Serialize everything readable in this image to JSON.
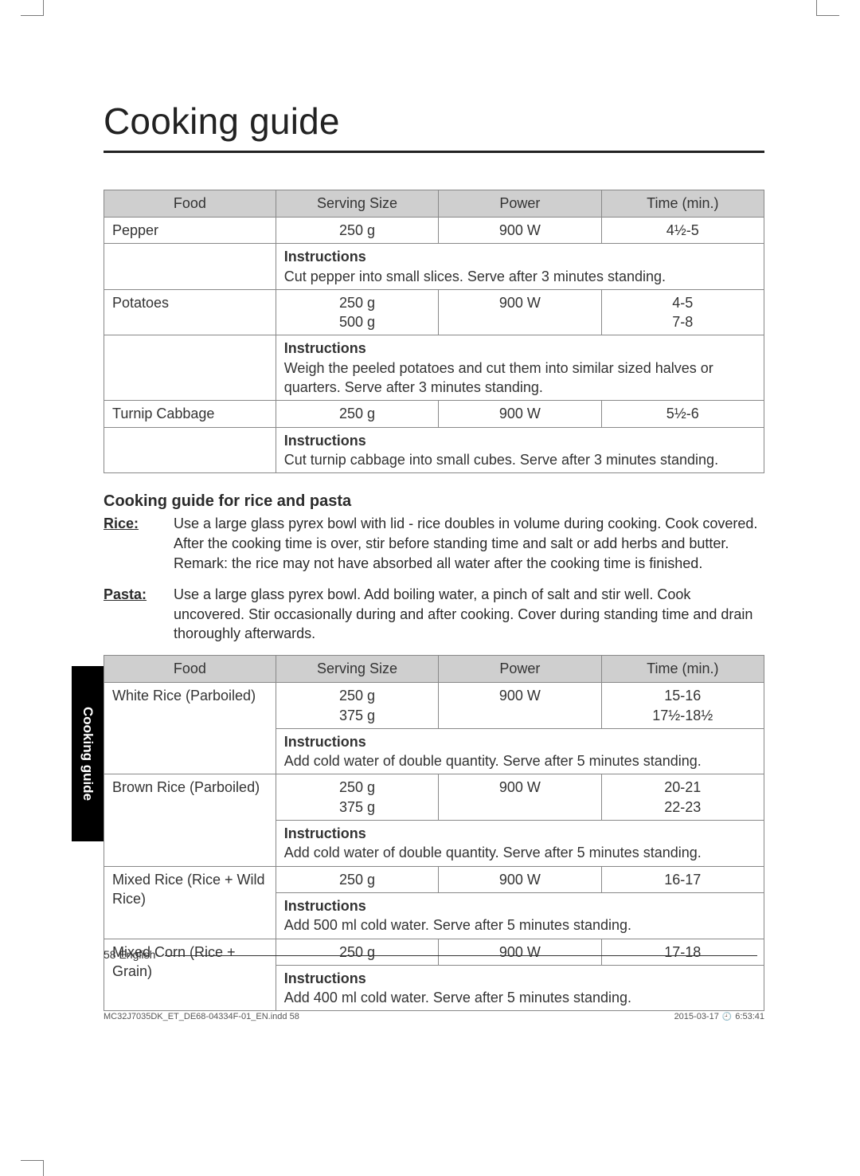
{
  "title": "Cooking guide",
  "side_tab": "Cooking guide",
  "table1": {
    "headers": [
      "Food",
      "Serving Size",
      "Power",
      "Time (min.)"
    ],
    "rows": [
      {
        "food": "Pepper",
        "serving": "250 g",
        "power": "900 W",
        "time": "4½-5",
        "instr_label": "Instructions",
        "instr": "Cut pepper into small slices. Serve after 3 minutes standing."
      },
      {
        "food": "Potatoes",
        "serving": "250 g\n500 g",
        "power": "900 W",
        "time": "4-5\n7-8",
        "instr_label": "Instructions",
        "instr": "Weigh the peeled potatoes and cut them into similar sized halves or quarters. Serve after 3 minutes standing."
      },
      {
        "food": "Turnip Cabbage",
        "serving": "250 g",
        "power": "900 W",
        "time": "5½-6",
        "instr_label": "Instructions",
        "instr": "Cut turnip cabbage into small cubes. Serve after 3 minutes standing."
      }
    ]
  },
  "section_heading": "Cooking guide for rice and pasta",
  "defs": {
    "rice_term": "Rice:",
    "rice_text": "Use a large glass pyrex bowl with lid - rice doubles in volume during cooking. Cook covered. After the cooking time is over, stir before standing time and salt or add herbs and butter. Remark: the rice may not have absorbed all water after the cooking time is finished.",
    "pasta_term": "Pasta:",
    "pasta_text": "Use a large glass pyrex bowl. Add boiling water, a pinch of salt and stir well. Cook uncovered. Stir occasionally during and after cooking. Cover during standing time and drain thoroughly afterwards."
  },
  "table2": {
    "headers": [
      "Food",
      "Serving Size",
      "Power",
      "Time (min.)"
    ],
    "rows": [
      {
        "food": "White Rice (Parboiled)",
        "serving": "250 g\n375 g",
        "power": "900 W",
        "time": "15-16\n17½-18½",
        "instr_label": "Instructions",
        "instr": "Add cold water of double quantity. Serve after 5 minutes standing."
      },
      {
        "food": "Brown Rice (Parboiled)",
        "serving": "250 g\n375 g",
        "power": "900 W",
        "time": "20-21\n22-23",
        "instr_label": "Instructions",
        "instr": "Add cold water of double quantity. Serve after 5 minutes standing."
      },
      {
        "food": "Mixed Rice (Rice + Wild Rice)",
        "serving": "250 g",
        "power": "900 W",
        "time": "16-17",
        "instr_label": "Instructions",
        "instr": "Add 500 ml cold water. Serve after 5 minutes standing."
      },
      {
        "food": "Mixed Corn (Rice + Grain)",
        "serving": "250 g",
        "power": "900 W",
        "time": "17-18",
        "instr_label": "Instructions",
        "instr": "Add 400 ml cold water. Serve after 5 minutes standing."
      }
    ]
  },
  "footer": {
    "page": "58 English"
  },
  "meta": {
    "left": "MC32J7035DK_ET_DE68-04334F-01_EN.indd   58",
    "right_date": "2015-03-17",
    "right_time": "6:53:41"
  }
}
